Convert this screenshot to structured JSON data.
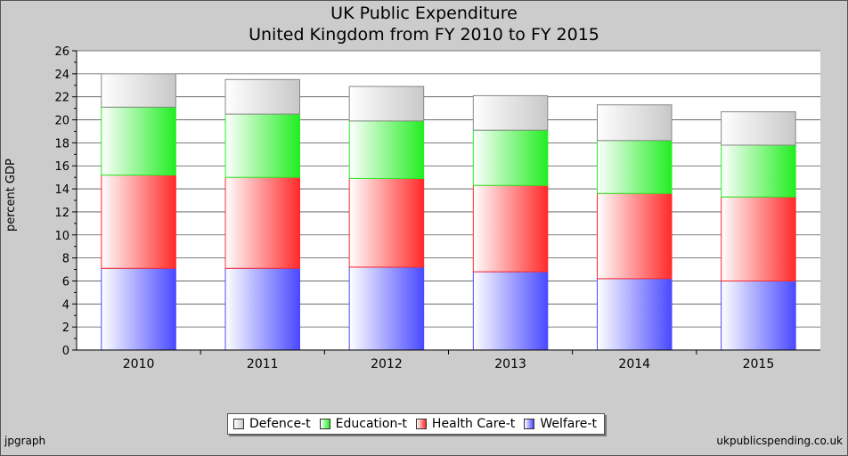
{
  "footer": {
    "left": "jpgraph",
    "right": "ukpublicspending.co.uk"
  },
  "chart_data": {
    "type": "bar",
    "stacked": true,
    "title": "UK Public Expenditure",
    "subtitle": "United Kingdom from FY 2010 to FY 2015",
    "ylabel": "percent GDP",
    "xlabel": "",
    "ylim": [
      0,
      26
    ],
    "yticks": [
      0,
      2,
      4,
      6,
      8,
      10,
      12,
      14,
      16,
      18,
      20,
      22,
      24,
      26
    ],
    "grid": true,
    "legend_position": "bottom",
    "categories": [
      "2010",
      "2011",
      "2012",
      "2013",
      "2014",
      "2015"
    ],
    "series": [
      {
        "name": "Welfare-t",
        "color": "#4a4aff",
        "values": [
          7.1,
          7.1,
          7.2,
          6.8,
          6.2,
          6.0
        ]
      },
      {
        "name": "Health Care-t",
        "color": "#ff2a2a",
        "values": [
          8.1,
          7.9,
          7.7,
          7.5,
          7.4,
          7.3
        ]
      },
      {
        "name": "Education-t",
        "color": "#22ee22",
        "values": [
          5.9,
          5.5,
          5.0,
          4.8,
          4.6,
          4.5
        ]
      },
      {
        "name": "Defence-t",
        "color": "#c8c8c8",
        "values": [
          2.9,
          3.0,
          3.0,
          3.0,
          3.1,
          2.9
        ]
      }
    ]
  }
}
